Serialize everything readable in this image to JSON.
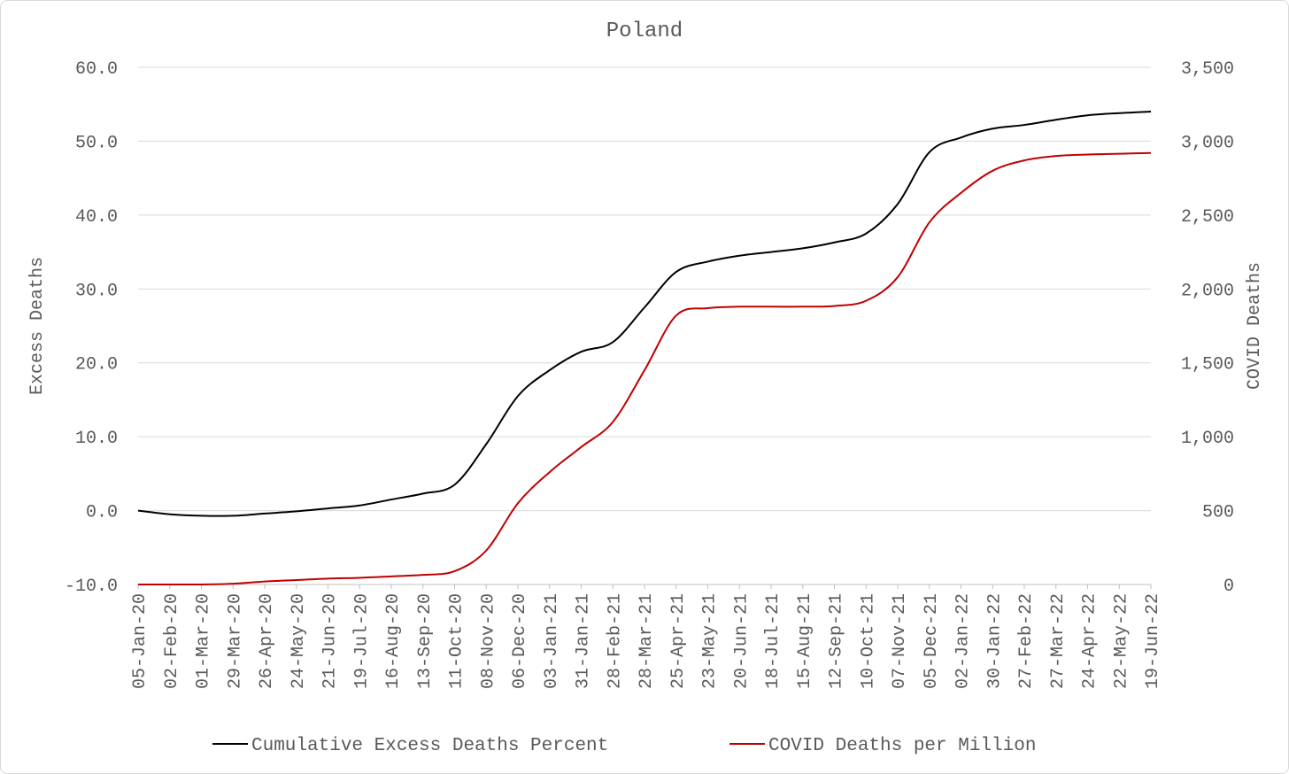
{
  "chart_data": {
    "type": "line",
    "title": "Poland",
    "ylabel_left": "Excess Deaths",
    "ylabel_right": "COVID Deaths",
    "ylim_left": [
      -10,
      60
    ],
    "ylim_right": [
      0,
      3500
    ],
    "yticks_left": [
      "60.0",
      "50.0",
      "40.0",
      "30.0",
      "20.0",
      "10.0",
      "0.0",
      "-10.0"
    ],
    "yticks_right": [
      "3,500",
      "3,000",
      "2,500",
      "2,000",
      "1,500",
      "1,000",
      "500",
      "0"
    ],
    "x_ticks": [
      "05-Jan-20",
      "02-Feb-20",
      "01-Mar-20",
      "29-Mar-20",
      "26-Apr-20",
      "24-May-20",
      "21-Jun-20",
      "19-Jul-20",
      "16-Aug-20",
      "13-Sep-20",
      "11-Oct-20",
      "08-Nov-20",
      "06-Dec-20",
      "03-Jan-21",
      "31-Jan-21",
      "28-Feb-21",
      "28-Mar-21",
      "25-Apr-21",
      "23-May-21",
      "20-Jun-21",
      "18-Jul-21",
      "15-Aug-21",
      "12-Sep-21",
      "10-Oct-21",
      "07-Nov-21",
      "05-Dec-21",
      "02-Jan-22",
      "30-Jan-22",
      "27-Feb-22",
      "27-Mar-22",
      "24-Apr-22",
      "22-May-22",
      "19-Jun-22"
    ],
    "legend_position": "bottom",
    "grid": true,
    "series": [
      {
        "name": "Cumulative Excess Deaths Percent",
        "axis": "left",
        "color": "#000000",
        "values": [
          0.0,
          -0.5,
          -0.7,
          -0.7,
          -0.4,
          -0.1,
          0.3,
          0.7,
          1.5,
          2.3,
          3.5,
          9.0,
          15.5,
          19.0,
          21.5,
          22.8,
          27.5,
          32.3,
          33.7,
          34.5,
          35.0,
          35.5,
          36.3,
          37.5,
          41.5,
          48.5,
          50.5,
          51.7,
          52.2,
          52.9,
          53.5,
          53.8,
          54.0
        ]
      },
      {
        "name": "COVID Deaths per Million",
        "axis": "right",
        "color": "#c00000",
        "values": [
          0,
          0,
          0,
          5,
          20,
          30,
          40,
          45,
          55,
          65,
          90,
          230,
          550,
          760,
          930,
          1100,
          1450,
          1820,
          1870,
          1880,
          1880,
          1880,
          1885,
          1920,
          2080,
          2450,
          2650,
          2800,
          2870,
          2900,
          2910,
          2915,
          2920
        ]
      }
    ]
  }
}
